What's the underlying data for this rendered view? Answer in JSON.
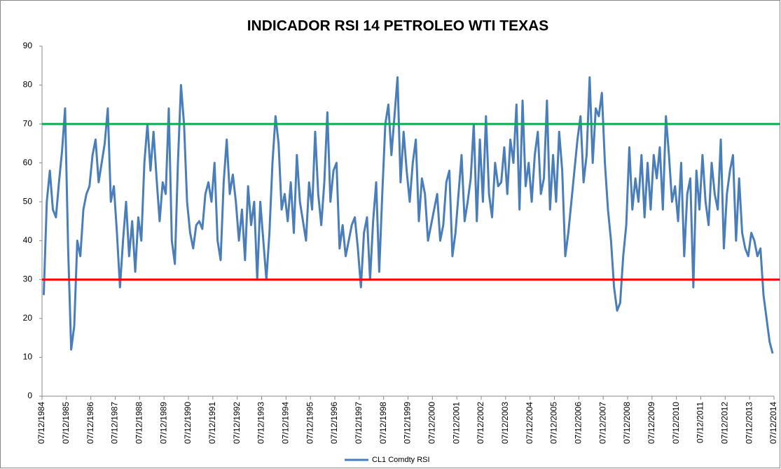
{
  "chart_data": {
    "type": "line",
    "title": "INDICADOR RSI 14 PETROLEO WTI TEXAS",
    "xlim": [
      1984.93,
      2014.93
    ],
    "xticks": [
      {
        "value": 1984.93,
        "label": "07/12/1984"
      },
      {
        "value": 1985.93,
        "label": "07/12/1985"
      },
      {
        "value": 1986.93,
        "label": "07/12/1986"
      },
      {
        "value": 1987.93,
        "label": "07/12/1987"
      },
      {
        "value": 1988.93,
        "label": "07/12/1988"
      },
      {
        "value": 1989.93,
        "label": "07/12/1989"
      },
      {
        "value": 1990.93,
        "label": "07/12/1990"
      },
      {
        "value": 1991.93,
        "label": "07/12/1991"
      },
      {
        "value": 1992.93,
        "label": "07/12/1992"
      },
      {
        "value": 1993.93,
        "label": "07/12/1993"
      },
      {
        "value": 1994.93,
        "label": "07/12/1994"
      },
      {
        "value": 1995.93,
        "label": "07/12/1995"
      },
      {
        "value": 1996.93,
        "label": "07/12/1996"
      },
      {
        "value": 1997.93,
        "label": "07/12/1997"
      },
      {
        "value": 1998.93,
        "label": "07/12/1998"
      },
      {
        "value": 1999.93,
        "label": "07/12/1999"
      },
      {
        "value": 2000.93,
        "label": "07/12/2000"
      },
      {
        "value": 2001.93,
        "label": "07/12/2001"
      },
      {
        "value": 2002.93,
        "label": "07/12/2002"
      },
      {
        "value": 2003.93,
        "label": "07/12/2003"
      },
      {
        "value": 2004.93,
        "label": "07/12/2004"
      },
      {
        "value": 2005.93,
        "label": "07/12/2005"
      },
      {
        "value": 2006.93,
        "label": "07/12/2006"
      },
      {
        "value": 2007.93,
        "label": "07/12/2007"
      },
      {
        "value": 2008.93,
        "label": "07/12/2008"
      },
      {
        "value": 2009.93,
        "label": "07/12/2009"
      },
      {
        "value": 2010.93,
        "label": "07/12/2010"
      },
      {
        "value": 2011.93,
        "label": "07/12/2011"
      },
      {
        "value": 2012.93,
        "label": "07/12/2012"
      },
      {
        "value": 2013.93,
        "label": "07/12/2013"
      },
      {
        "value": 2014.93,
        "label": "07/12/2014"
      }
    ],
    "ylim": [
      0,
      90
    ],
    "yticks": [
      0,
      10,
      20,
      30,
      40,
      50,
      60,
      70,
      80,
      90
    ],
    "reference_lines": [
      {
        "value": 70,
        "color": "#00b050"
      },
      {
        "value": 30,
        "color": "#ff0000"
      }
    ],
    "x": [
      1985,
      1985.125,
      1985.25,
      1985.375,
      1985.5,
      1985.625,
      1985.75,
      1985.875,
      1986,
      1986.125,
      1986.25,
      1986.375,
      1986.5,
      1986.625,
      1986.75,
      1986.875,
      1987,
      1987.125,
      1987.25,
      1987.375,
      1987.5,
      1987.625,
      1987.75,
      1987.875,
      1988,
      1988.125,
      1988.25,
      1988.375,
      1988.5,
      1988.625,
      1988.75,
      1988.875,
      1989,
      1989.125,
      1989.25,
      1989.375,
      1989.5,
      1989.625,
      1989.75,
      1989.875,
      1990,
      1990.125,
      1990.25,
      1990.375,
      1990.5,
      1990.625,
      1990.75,
      1990.875,
      1991,
      1991.125,
      1991.25,
      1991.375,
      1991.5,
      1991.625,
      1991.75,
      1991.875,
      1992,
      1992.125,
      1992.25,
      1992.375,
      1992.5,
      1992.625,
      1992.75,
      1992.875,
      1993,
      1993.125,
      1993.25,
      1993.375,
      1993.5,
      1993.625,
      1993.75,
      1993.875,
      1994,
      1994.125,
      1994.25,
      1994.375,
      1994.5,
      1994.625,
      1994.75,
      1994.875,
      1995,
      1995.125,
      1995.25,
      1995.375,
      1995.5,
      1995.625,
      1995.75,
      1995.875,
      1996,
      1996.125,
      1996.25,
      1996.375,
      1996.5,
      1996.625,
      1996.75,
      1996.875,
      1997,
      1997.125,
      1997.25,
      1997.375,
      1997.5,
      1997.625,
      1997.75,
      1997.875,
      1998,
      1998.125,
      1998.25,
      1998.375,
      1998.5,
      1998.625,
      1998.75,
      1998.875,
      1999,
      1999.125,
      1999.25,
      1999.375,
      1999.5,
      1999.625,
      1999.75,
      1999.875,
      2000,
      2000.125,
      2000.25,
      2000.375,
      2000.5,
      2000.625,
      2000.75,
      2000.875,
      2001,
      2001.125,
      2001.25,
      2001.375,
      2001.5,
      2001.625,
      2001.75,
      2001.875,
      2002,
      2002.125,
      2002.25,
      2002.375,
      2002.5,
      2002.625,
      2002.75,
      2002.875,
      2003,
      2003.125,
      2003.25,
      2003.375,
      2003.5,
      2003.625,
      2003.75,
      2003.875,
      2004,
      2004.125,
      2004.25,
      2004.375,
      2004.5,
      2004.625,
      2004.75,
      2004.875,
      2005,
      2005.125,
      2005.25,
      2005.375,
      2005.5,
      2005.625,
      2005.75,
      2005.875,
      2006,
      2006.125,
      2006.25,
      2006.375,
      2006.5,
      2006.625,
      2006.75,
      2006.875,
      2007,
      2007.125,
      2007.25,
      2007.375,
      2007.5,
      2007.625,
      2007.75,
      2007.875,
      2008,
      2008.125,
      2008.25,
      2008.375,
      2008.5,
      2008.625,
      2008.75,
      2008.875,
      2009,
      2009.125,
      2009.25,
      2009.375,
      2009.5,
      2009.625,
      2009.75,
      2009.875,
      2010,
      2010.125,
      2010.25,
      2010.375,
      2010.5,
      2010.625,
      2010.75,
      2010.875,
      2011,
      2011.125,
      2011.25,
      2011.375,
      2011.5,
      2011.625,
      2011.75,
      2011.875,
      2012,
      2012.125,
      2012.25,
      2012.375,
      2012.5,
      2012.625,
      2012.75,
      2012.875,
      2013,
      2013.125,
      2013.25,
      2013.375,
      2013.5,
      2013.625,
      2013.75,
      2013.875,
      2014,
      2014.125,
      2014.25,
      2014.375,
      2014.5,
      2014.625,
      2014.75,
      2014.875
    ],
    "series": [
      {
        "name": "CL1 Comdty RSI",
        "color": "#4a7ebb",
        "values": [
          26,
          50,
          58,
          48,
          46,
          55,
          63,
          74,
          38,
          12,
          18,
          40,
          36,
          48,
          52,
          54,
          62,
          66,
          55,
          60,
          65,
          74,
          50,
          54,
          42,
          28,
          40,
          50,
          36,
          45,
          32,
          46,
          40,
          60,
          70,
          58,
          68,
          56,
          45,
          55,
          52,
          74,
          40,
          34,
          60,
          80,
          70,
          50,
          42,
          38,
          44,
          45,
          43,
          52,
          55,
          50,
          60,
          40,
          35,
          55,
          66,
          52,
          57,
          50,
          40,
          48,
          35,
          54,
          44,
          50,
          30,
          50,
          40,
          30,
          42,
          60,
          72,
          65,
          48,
          52,
          45,
          55,
          42,
          62,
          50,
          45,
          40,
          55,
          48,
          68,
          52,
          44,
          55,
          73,
          50,
          58,
          60,
          38,
          44,
          36,
          40,
          44,
          46,
          38,
          28,
          42,
          46,
          30,
          45,
          55,
          32,
          52,
          70,
          75,
          62,
          72,
          82,
          55,
          68,
          58,
          50,
          60,
          66,
          45,
          56,
          52,
          40,
          44,
          48,
          52,
          40,
          44,
          55,
          58,
          36,
          42,
          52,
          62,
          45,
          50,
          56,
          70,
          45,
          66,
          50,
          72,
          52,
          46,
          60,
          54,
          55,
          64,
          52,
          66,
          60,
          75,
          48,
          76,
          54,
          60,
          50,
          62,
          68,
          52,
          56,
          76,
          48,
          62,
          50,
          68,
          58,
          36,
          42,
          50,
          58,
          66,
          72,
          55,
          62,
          82,
          60,
          74,
          72,
          78,
          60,
          48,
          40,
          28,
          22,
          24,
          36,
          44,
          64,
          48,
          56,
          50,
          62,
          46,
          60,
          48,
          62,
          56,
          64,
          48,
          72,
          62,
          50,
          54,
          45,
          60,
          36,
          52,
          56,
          28,
          58,
          48,
          62,
          50,
          44,
          60,
          52,
          48,
          66,
          38,
          52,
          58,
          62,
          40,
          56,
          42,
          38,
          36,
          42,
          40,
          36,
          38,
          26,
          20,
          14,
          11
        ]
      }
    ]
  }
}
